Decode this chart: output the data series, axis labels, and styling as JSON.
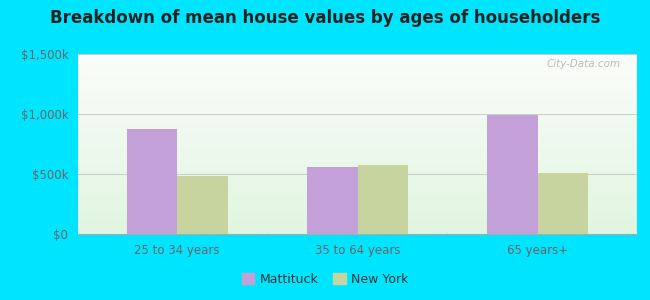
{
  "title": "Breakdown of mean house values by ages of householders",
  "categories": [
    "25 to 34 years",
    "35 to 64 years",
    "65 years+"
  ],
  "mattituck_values": [
    875000,
    562000,
    990000
  ],
  "newyork_values": [
    480000,
    575000,
    510000
  ],
  "ylim": [
    0,
    1500000
  ],
  "ytick_labels": [
    "$0",
    "$500k",
    "$1,000k",
    "$1,500k"
  ],
  "ytick_values": [
    0,
    500000,
    1000000,
    1500000
  ],
  "mattituck_color": "#c4a0d8",
  "newyork_color": "#c8d4a0",
  "background_outer": "#00e5ff",
  "title_fontsize": 12,
  "title_color": "#222222",
  "legend_labels": [
    "Mattituck",
    "New York"
  ],
  "watermark": "City-Data.com",
  "bar_width": 0.28,
  "tick_label_color": "#666666",
  "spine_color": "#aaaaaa",
  "grid_color": "#cccccc"
}
